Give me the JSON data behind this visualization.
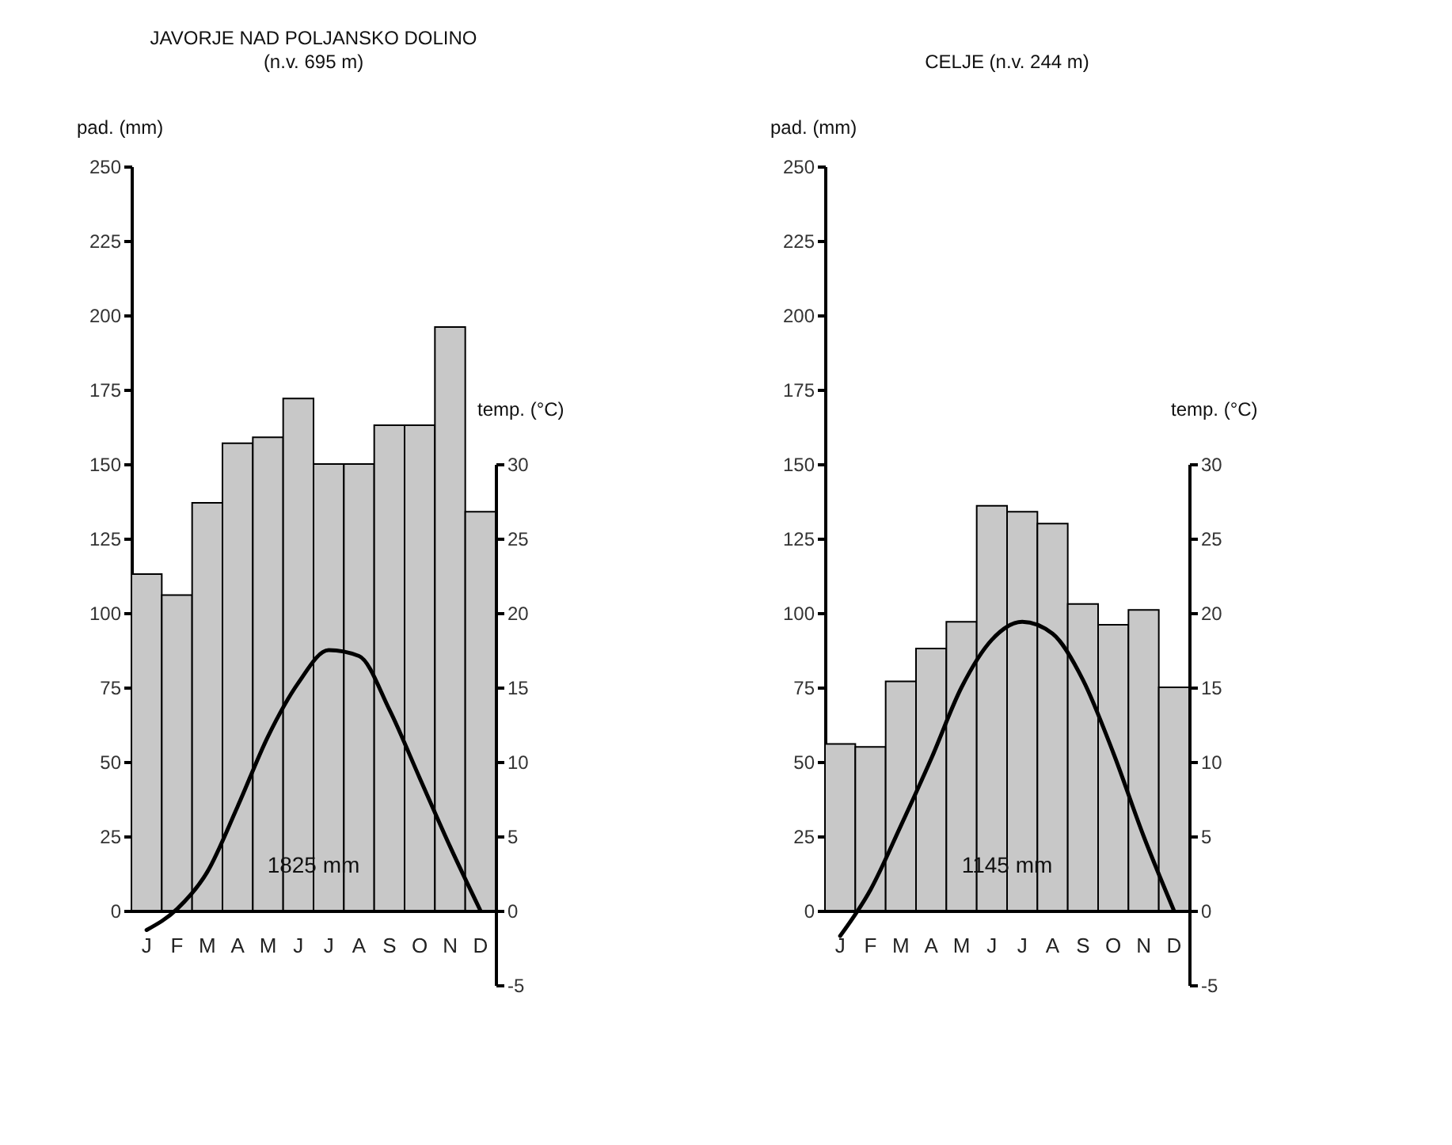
{
  "chart_data": [
    {
      "type": "bar",
      "title": "JAVORJE NAD POLJANSKO DOLINO",
      "subtitle": "(n.v. 695 m)",
      "ylabel": "pad. (mm)",
      "y2label": "temp. (°C)",
      "categories": [
        "J",
        "F",
        "M",
        "A",
        "M",
        "J",
        "J",
        "A",
        "S",
        "O",
        "N",
        "D"
      ],
      "ylim": [
        0,
        250
      ],
      "yticks": [
        0,
        25,
        50,
        75,
        100,
        125,
        150,
        175,
        200,
        225,
        250
      ],
      "y2lim": [
        -5,
        30
      ],
      "y2ticks": [
        -5,
        0,
        5,
        10,
        15,
        20,
        25,
        30
      ],
      "series": [
        {
          "type": "bar",
          "color": "#c8c8c8",
          "values": [
            113,
            106,
            137,
            157,
            159,
            172,
            150,
            150,
            163,
            163,
            196,
            134
          ]
        },
        {
          "type": "line",
          "axis": "y2",
          "color": "#000000",
          "values": [
            -1.3,
            0.1,
            2.6,
            7.0,
            11.7,
            15.3,
            17.5,
            17.1,
            13.5,
            8.9,
            4.3,
            0
          ]
        }
      ],
      "annotations": [
        "1825 mm"
      ]
    },
    {
      "type": "bar",
      "title": "CELJE (n.v. 244 m)",
      "ylabel": "pad. (mm)",
      "y2label": "temp. (°C)",
      "categories": [
        "J",
        "F",
        "M",
        "A",
        "M",
        "J",
        "J",
        "A",
        "S",
        "O",
        "N",
        "D"
      ],
      "ylim": [
        0,
        250
      ],
      "yticks": [
        0,
        25,
        50,
        75,
        100,
        125,
        150,
        175,
        200,
        225,
        250
      ],
      "y2lim": [
        -5,
        30
      ],
      "y2ticks": [
        -5,
        0,
        5,
        10,
        15,
        20,
        25,
        30
      ],
      "series": [
        {
          "type": "bar",
          "color": "#c8c8c8",
          "values": [
            56,
            55,
            77,
            88,
            97,
            136,
            134,
            130,
            103,
            96,
            101,
            75
          ]
        },
        {
          "type": "line",
          "axis": "y2",
          "color": "#000000",
          "values": [
            -1.7,
            1.4,
            5.7,
            10.2,
            15,
            18.2,
            19.4,
            18.6,
            15.5,
            10.6,
            5,
            0
          ]
        }
      ],
      "annotations": [
        "1145 mm"
      ]
    }
  ]
}
